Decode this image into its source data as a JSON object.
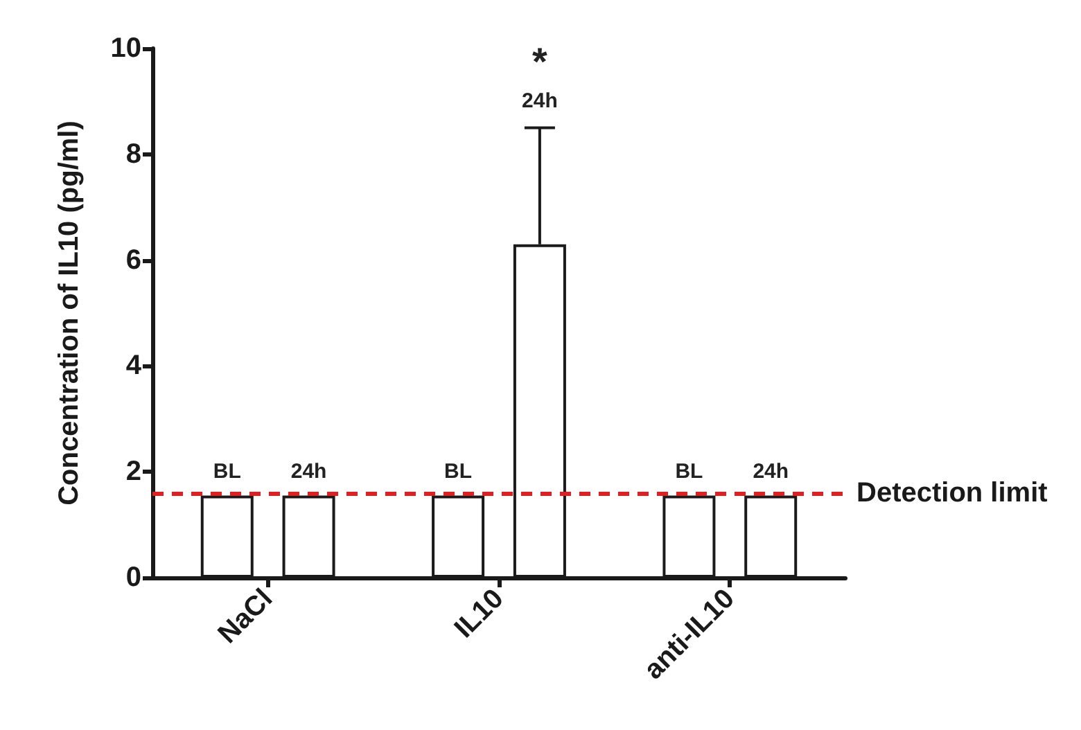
{
  "chart_data": {
    "type": "bar",
    "ylabel": "Concentration of IL10 (pg/ml)",
    "categories": [
      "NaCl",
      "IL10",
      "anti-IL10"
    ],
    "series": [
      {
        "name": "BL",
        "color": "#ffffff",
        "values": [
          1.55,
          1.55,
          1.55
        ]
      },
      {
        "name": "24h",
        "color": "#ffffff",
        "values": [
          1.55,
          6.3,
          1.55
        ],
        "errors": [
          null,
          [
            6.3,
            8.5
          ],
          null
        ]
      }
    ],
    "ylim": [
      0,
      10
    ],
    "yticks": [
      0,
      2,
      4,
      6,
      8,
      10
    ],
    "grid": false,
    "legend": false,
    "ref_lines": [
      {
        "axis": "y",
        "value": 1.6,
        "label": "Detection limit",
        "color": "#e02020",
        "line_style": "dashed"
      }
    ],
    "annotations": [
      "*"
    ]
  }
}
